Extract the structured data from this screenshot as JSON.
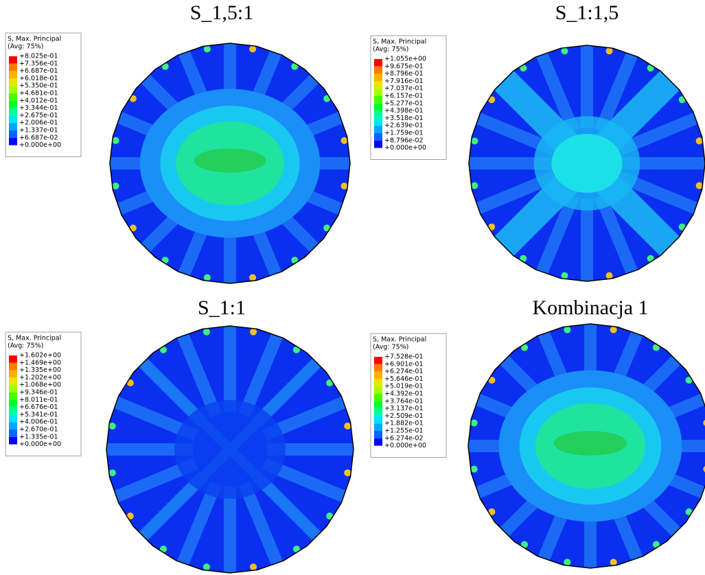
{
  "panels": [
    {
      "title": "S_1,5:1",
      "legend": {
        "title": "S, Max. Principal",
        "subtitle": "(Avg: 75%)",
        "labels": [
          "+8.025e-01",
          "+7.356e-01",
          "+6.687e-01",
          "+6.018e-01",
          "+5.350e-01",
          "+4.681e-01",
          "+4.012e-01",
          "+3.344e-01",
          "+2.675e-01",
          "+2.006e-01",
          "+1.337e-01",
          "+6.687e-02",
          "+0.000e+00"
        ]
      }
    },
    {
      "title": "S_1:1,5",
      "legend": {
        "title": "S, Max. Principal",
        "subtitle": "(Avg: 75%)",
        "labels": [
          "+1.055e+00",
          "+9.675e-01",
          "+8.796e-01",
          "+7.916e-01",
          "+7.037e-01",
          "+6.157e-01",
          "+5.277e-01",
          "+4.398e-01",
          "+3.518e-01",
          "+2.639e-01",
          "+1.759e-01",
          "+8.796e-02",
          "+0.000e+00"
        ]
      }
    },
    {
      "title": "S_1:1",
      "legend": {
        "title": "S, Max. Principal",
        "subtitle": "(Avg: 75%)",
        "labels": [
          "+1.602e+00",
          "+1.469e+00",
          "+1.335e+00",
          "+1.202e+00",
          "+1.068e+00",
          "+9.346e-01",
          "+8.011e-01",
          "+6.676e-01",
          "+5.341e-01",
          "+4.006e-01",
          "+2.670e-01",
          "+1.335e-01",
          "+0.000e+00"
        ]
      }
    },
    {
      "title": "Kombinacja 1",
      "legend": {
        "title": "S, Max. Principal",
        "subtitle": "(Avg: 75%)",
        "labels": [
          "+7.528e-01",
          "+6.901e-01",
          "+6.274e-01",
          "+5.646e-01",
          "+5.019e-01",
          "+4.392e-01",
          "+3.764e-01",
          "+3.137e-01",
          "+2.509e-01",
          "+1.882e-01",
          "+1.255e-01",
          "+6.274e-02",
          "+0.000e+00"
        ]
      }
    }
  ]
}
